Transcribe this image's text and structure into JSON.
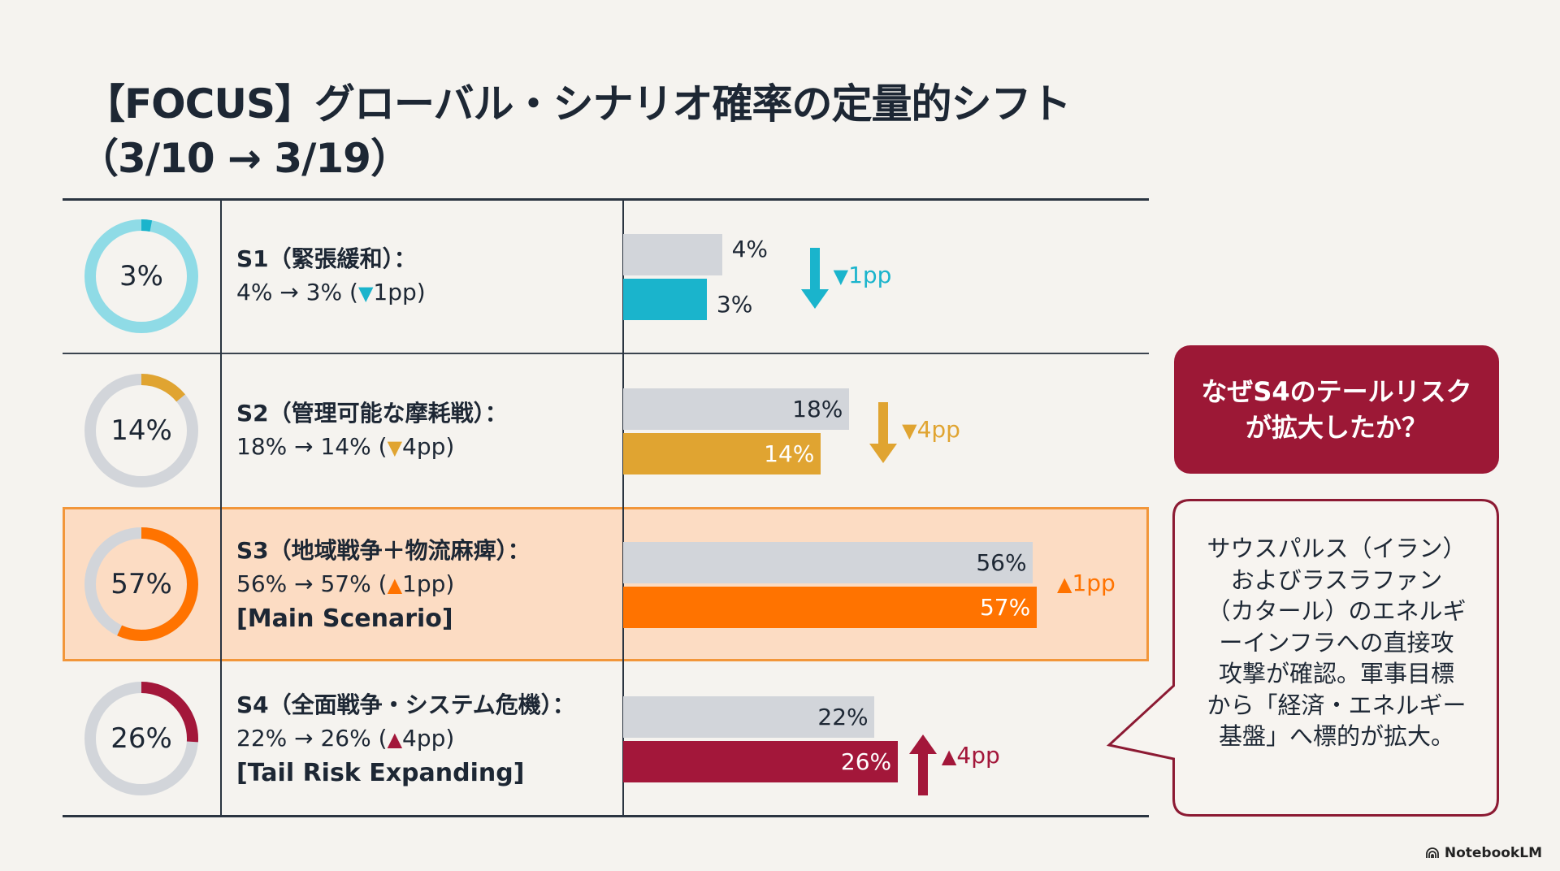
{
  "header": {
    "title_line1": "【FOCUS】グローバル・シナリオ確率の定量的シフト",
    "title_line2": "（3/10 → 3/19）"
  },
  "scenarios": [
    {
      "name": "S1（緊張緩和）：",
      "change_text": "4% → 3% (",
      "change_tri": "▼",
      "change_pp": "1pp)",
      "tag": "",
      "donut_label": "3%",
      "prev_label": "4%",
      "curr_label": "3%",
      "delta_label": "1pp",
      "delta_tri": "▼",
      "direction": "down",
      "color": "#1ab4cc",
      "track": "#8fdbe6",
      "highlight": false
    },
    {
      "name": "S2（管理可能な摩耗戦）：",
      "change_text": "18% → 14% (",
      "change_tri": "▼",
      "change_pp": "4pp)",
      "tag": "",
      "donut_label": "14%",
      "prev_label": "18%",
      "curr_label": "14%",
      "delta_label": "4pp",
      "delta_tri": "▼",
      "direction": "down",
      "color": "#e0a431",
      "track": "#d2d5da",
      "highlight": false
    },
    {
      "name": "S3（地域戦争＋物流麻痺）：",
      "change_text": "56% → 57% (",
      "change_tri": "▲",
      "change_pp": "1pp)",
      "tag": "[Main Scenario]",
      "donut_label": "57%",
      "prev_label": "56%",
      "curr_label": "57%",
      "delta_label": "1pp",
      "delta_tri": "▲",
      "direction": "up",
      "color": "#ff7300",
      "track": "#d2d5da",
      "highlight": true
    },
    {
      "name": "S4（全面戦争・システム危機）：",
      "change_text": "22% → 26% (",
      "change_tri": "▲",
      "change_pp": "4pp)",
      "tag": "[Tail Risk Expanding]",
      "donut_label": "26%",
      "prev_label": "22%",
      "curr_label": "26%",
      "delta_label": "4pp",
      "delta_tri": "▲",
      "direction": "up",
      "color": "#a3173a",
      "track": "#d2d5da",
      "highlight": false
    }
  ],
  "chart_data": {
    "type": "bar",
    "orientation": "horizontal",
    "categories": [
      "S1",
      "S2",
      "S3",
      "S4"
    ],
    "series": [
      {
        "values": [
          4,
          18,
          56,
          22
        ],
        "color": "#d2d5da"
      },
      {
        "values": [
          3,
          14,
          57,
          26
        ],
        "colors": [
          "#1ab4cc",
          "#e0a431",
          "#ff7300",
          "#a3173a"
        ]
      }
    ],
    "change_pp": [
      -1,
      -4,
      1,
      4
    ],
    "unit": "%",
    "grid": false,
    "legend": "none"
  },
  "callout": {
    "question_line1": "なぜS4のテールリスク",
    "question_line2": "が拡大したか？",
    "answer_lines": [
      "サウスパルス（イラン）",
      "およびラスラファン",
      "（カタール）のエネルギ",
      "ーインフラへの直接攻",
      "攻撃が確認。軍事目標",
      "から「経済・エネルギー",
      "基盤」へ標的が拡大。"
    ],
    "accent": "#9c1836"
  },
  "footer": {
    "brand": "NotebookLM"
  }
}
